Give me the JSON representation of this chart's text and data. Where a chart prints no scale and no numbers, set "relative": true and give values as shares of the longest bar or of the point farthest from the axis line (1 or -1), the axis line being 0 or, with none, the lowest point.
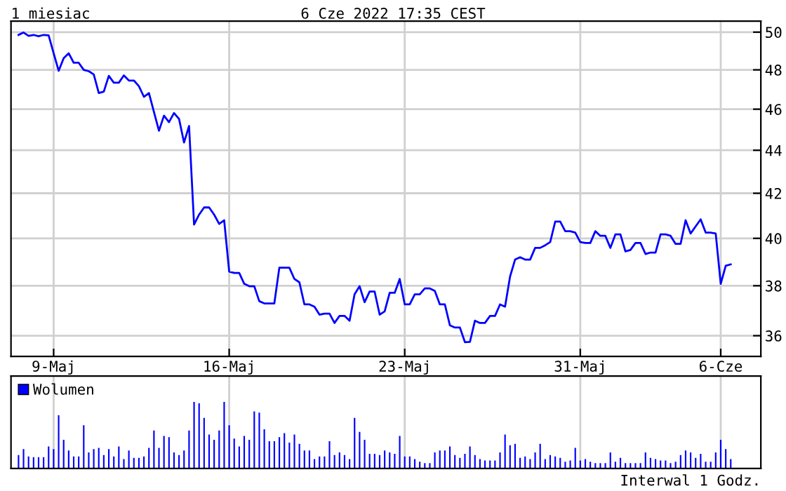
{
  "chart_data": [
    {
      "type": "line",
      "title": "1 miesiac",
      "subtitle": "6 Cze 2022 17:35 CEST",
      "log": true,
      "grid": true,
      "legend": false,
      "ylim": [
        35.2,
        50.6
      ],
      "yticks": [
        36,
        38,
        40,
        42,
        44,
        46,
        48,
        50
      ],
      "categories": [
        null,
        null,
        null,
        null,
        null,
        null,
        null,
        "9-Maj",
        null,
        null,
        null,
        null,
        null,
        null,
        null,
        null,
        null,
        null,
        null,
        null,
        null,
        null,
        null,
        null,
        null,
        null,
        null,
        null,
        null,
        null,
        null,
        null,
        null,
        null,
        null,
        null,
        null,
        null,
        null,
        null,
        null,
        null,
        "16-Maj",
        null,
        null,
        null,
        null,
        null,
        null,
        null,
        null,
        null,
        null,
        null,
        null,
        null,
        null,
        null,
        null,
        null,
        null,
        null,
        null,
        null,
        null,
        null,
        null,
        null,
        null,
        null,
        null,
        null,
        null,
        null,
        null,
        null,
        null,
        "23-Maj",
        null,
        null,
        null,
        null,
        null,
        null,
        null,
        null,
        null,
        null,
        null,
        null,
        null,
        null,
        null,
        null,
        null,
        null,
        null,
        null,
        null,
        null,
        null,
        null,
        null,
        null,
        null,
        null,
        null,
        null,
        null,
        null,
        null,
        null,
        "31-Maj",
        null,
        null,
        null,
        null,
        null,
        null,
        null,
        null,
        null,
        null,
        null,
        null,
        null,
        null,
        null,
        null,
        null,
        null,
        null,
        null,
        null,
        null,
        null,
        null,
        null,
        null,
        null,
        "6-Cze",
        null,
        null
      ],
      "series": [
        {
          "color": "#0000ff",
          "values": [
            49.85,
            49.98,
            49.8,
            49.85,
            49.78,
            49.85,
            49.83,
            48.87,
            47.95,
            48.61,
            48.87,
            48.37,
            48.37,
            48.0,
            47.93,
            47.76,
            46.81,
            46.88,
            47.69,
            47.34,
            47.34,
            47.71,
            47.45,
            47.45,
            47.16,
            46.62,
            46.81,
            45.86,
            44.94,
            45.68,
            45.36,
            45.81,
            45.52,
            44.37,
            45.17,
            40.6,
            41.04,
            41.36,
            41.36,
            41.04,
            40.63,
            40.79,
            38.59,
            38.53,
            38.53,
            38.08,
            37.98,
            37.98,
            37.37,
            37.28,
            37.28,
            37.28,
            38.75,
            38.75,
            38.75,
            38.28,
            38.14,
            37.24,
            37.24,
            37.15,
            36.83,
            36.87,
            36.87,
            36.5,
            36.78,
            36.78,
            36.59,
            37.65,
            37.98,
            37.33,
            37.76,
            37.76,
            36.83,
            36.96,
            37.71,
            37.71,
            38.28,
            37.24,
            37.24,
            37.65,
            37.65,
            37.89,
            37.89,
            37.79,
            37.24,
            37.24,
            36.41,
            36.32,
            36.32,
            35.75,
            35.76,
            36.59,
            36.5,
            36.5,
            36.78,
            36.78,
            37.24,
            37.15,
            38.38,
            39.09,
            39.19,
            39.09,
            39.09,
            39.59,
            39.59,
            39.7,
            39.84,
            40.73,
            40.73,
            40.31,
            40.31,
            40.25,
            39.84,
            39.8,
            39.8,
            40.31,
            40.11,
            40.11,
            39.59,
            40.17,
            40.17,
            39.44,
            39.5,
            39.8,
            39.8,
            39.33,
            39.39,
            39.39,
            40.17,
            40.17,
            40.11,
            39.76,
            39.76,
            40.79,
            40.21,
            40.52,
            40.83,
            40.25,
            40.25,
            40.21,
            38.08,
            38.83,
            38.89
          ]
        }
      ]
    },
    {
      "type": "bar",
      "relative": true,
      "grid": "x",
      "legend": "top left",
      "annotations": [
        "Interwal 1 Godz."
      ],
      "categories": [
        null,
        null,
        null,
        null,
        null,
        null,
        null,
        null,
        null,
        null,
        null,
        null,
        null,
        null,
        null,
        null,
        null,
        null,
        null,
        null,
        null,
        null,
        null,
        null,
        null,
        null,
        null,
        null,
        null,
        null,
        null,
        null,
        null,
        null,
        null,
        null,
        null,
        null,
        null,
        null,
        null,
        null,
        null,
        null,
        null,
        null,
        null,
        null,
        null,
        null,
        null,
        null,
        null,
        null,
        null,
        null,
        null,
        null,
        null,
        null,
        null,
        null,
        null,
        null,
        null,
        null,
        null,
        null,
        null,
        null,
        null,
        null,
        null,
        null,
        null,
        null,
        null,
        null,
        null,
        null,
        null,
        null,
        null,
        null,
        null,
        null,
        null,
        null,
        null,
        null,
        null,
        null,
        null,
        null,
        null,
        null,
        null,
        null,
        null,
        null,
        null,
        null,
        null,
        null,
        null,
        null,
        null,
        null,
        null,
        null,
        null,
        null,
        null,
        null,
        null,
        null,
        null,
        null,
        null,
        null,
        null,
        null,
        null,
        null,
        null,
        null,
        null,
        null,
        null,
        null,
        null,
        null,
        null,
        null,
        null,
        null,
        null,
        null,
        null,
        null,
        null,
        null,
        null
      ],
      "series": [
        {
          "name": "Wolumen",
          "color": "#0000ff",
          "values": [
            0.2,
            0.29,
            0.18,
            0.17,
            0.17,
            0.17,
            0.33,
            0.29,
            0.8,
            0.43,
            0.27,
            0.18,
            0.18,
            0.65,
            0.24,
            0.29,
            0.31,
            0.2,
            0.29,
            0.18,
            0.33,
            0.14,
            0.27,
            0.16,
            0.16,
            0.18,
            0.31,
            0.57,
            0.31,
            0.49,
            0.47,
            0.24,
            0.2,
            0.27,
            0.57,
            1.0,
            0.98,
            0.76,
            0.51,
            0.43,
            0.57,
            1.0,
            0.65,
            0.45,
            0.33,
            0.49,
            0.43,
            0.86,
            0.84,
            0.59,
            0.41,
            0.41,
            0.47,
            0.53,
            0.39,
            0.51,
            0.37,
            0.27,
            0.27,
            0.14,
            0.18,
            0.18,
            0.41,
            0.2,
            0.24,
            0.2,
            0.14,
            0.76,
            0.55,
            0.43,
            0.22,
            0.22,
            0.2,
            0.27,
            0.24,
            0.22,
            0.49,
            0.18,
            0.18,
            0.14,
            0.1,
            0.08,
            0.08,
            0.24,
            0.27,
            0.27,
            0.33,
            0.2,
            0.16,
            0.22,
            0.33,
            0.2,
            0.14,
            0.12,
            0.12,
            0.12,
            0.24,
            0.51,
            0.35,
            0.37,
            0.16,
            0.18,
            0.14,
            0.24,
            0.37,
            0.14,
            0.2,
            0.18,
            0.16,
            0.1,
            0.12,
            0.31,
            0.12,
            0.14,
            0.1,
            0.08,
            0.08,
            0.08,
            0.24,
            0.1,
            0.16,
            0.08,
            0.08,
            0.08,
            0.08,
            0.24,
            0.16,
            0.14,
            0.12,
            0.12,
            0.08,
            0.1,
            0.2,
            0.27,
            0.24,
            0.16,
            0.22,
            0.1,
            0.1,
            0.24,
            0.43,
            0.29,
            0.14
          ]
        }
      ]
    }
  ]
}
